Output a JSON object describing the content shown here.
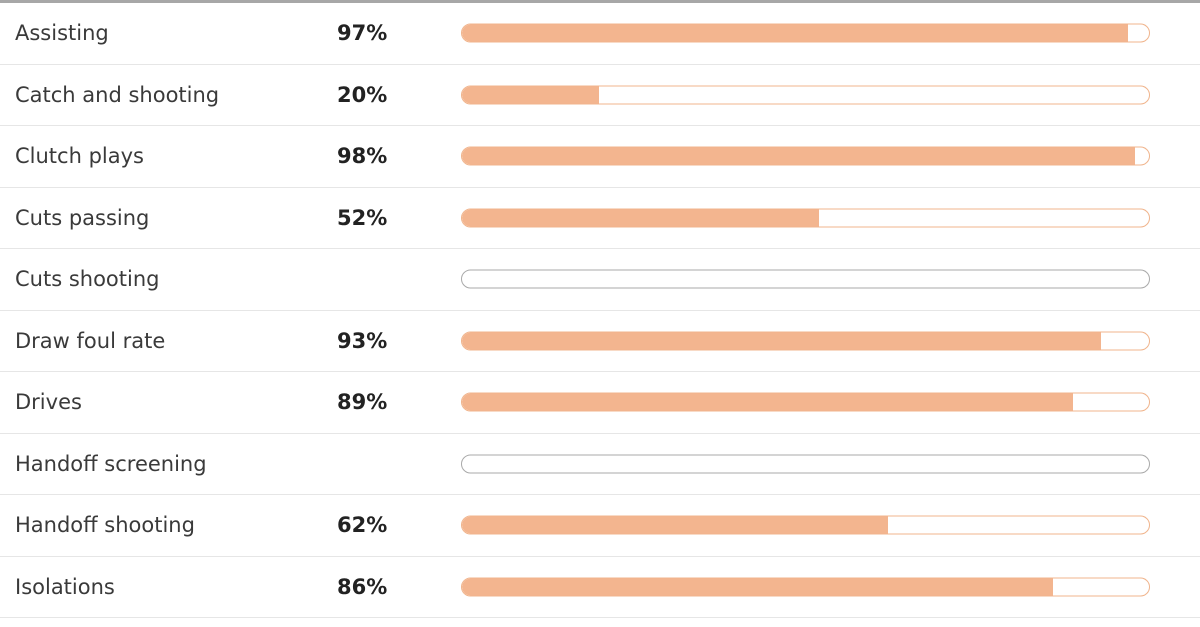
{
  "accent_color": "#f3b58f",
  "rows": [
    {
      "label": "Assisting",
      "value": "97%",
      "fraction": 0.97
    },
    {
      "label": "Catch and shooting",
      "value": "20%",
      "fraction": 0.2
    },
    {
      "label": "Clutch plays",
      "value": "98%",
      "fraction": 0.98
    },
    {
      "label": "Cuts passing",
      "value": "52%",
      "fraction": 0.52
    },
    {
      "label": "Cuts shooting",
      "value": "",
      "fraction": null
    },
    {
      "label": "Draw foul rate",
      "value": "93%",
      "fraction": 0.93
    },
    {
      "label": "Drives",
      "value": "89%",
      "fraction": 0.89
    },
    {
      "label": "Handoff screening",
      "value": "",
      "fraction": null
    },
    {
      "label": "Handoff shooting",
      "value": "62%",
      "fraction": 0.62
    },
    {
      "label": "Isolations",
      "value": "86%",
      "fraction": 0.86
    }
  ]
}
